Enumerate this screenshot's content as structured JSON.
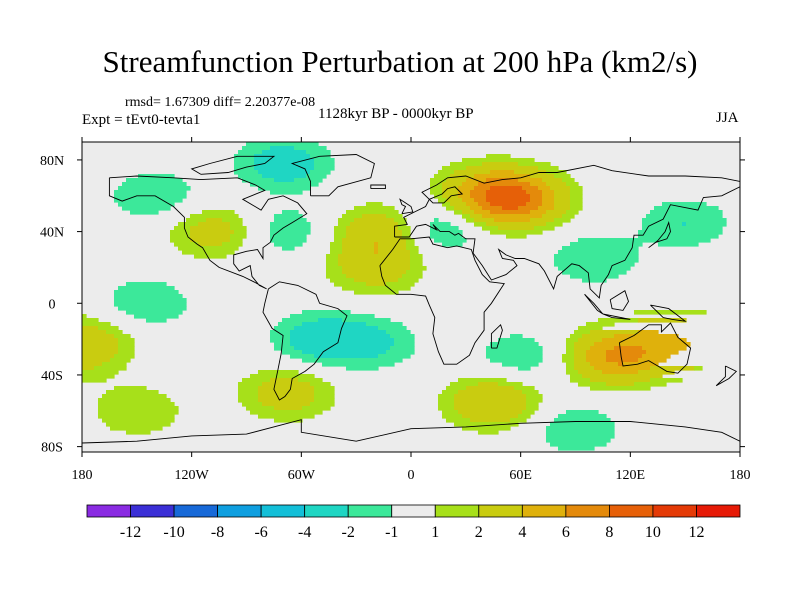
{
  "chart_data": {
    "type": "heatmap",
    "title": "Streamfunction Perturbation at 200 hPa (km2/s)",
    "stats_text": "rmsd= 1.67309 diff= 2.20377e-08",
    "experiment": "Expt = tEvt0-tevta1",
    "period": "1128kyr BP - 0000kyr BP",
    "season": "JJA",
    "projection": "cylindrical equidistant",
    "lon_range": [
      -180,
      180
    ],
    "lat_range": [
      -90,
      90
    ],
    "x_ticks": [
      {
        "value": -180,
        "label": "180"
      },
      {
        "value": -120,
        "label": "120W"
      },
      {
        "value": -60,
        "label": "60W"
      },
      {
        "value": 0,
        "label": "0"
      },
      {
        "value": 60,
        "label": "60E"
      },
      {
        "value": 120,
        "label": "120E"
      },
      {
        "value": 180,
        "label": "180"
      }
    ],
    "y_ticks": [
      {
        "value": 80,
        "label": "80N"
      },
      {
        "value": 40,
        "label": "40N"
      },
      {
        "value": 0,
        "label": "0"
      },
      {
        "value": -40,
        "label": "40S"
      },
      {
        "value": -80,
        "label": "80S"
      }
    ],
    "colorbar": {
      "labels": [
        "-12",
        "-10",
        "-8",
        "-6",
        "-4",
        "-2",
        "-1",
        "1",
        "2",
        "4",
        "6",
        "8",
        "10",
        "12"
      ],
      "colors": [
        "#8a2be2",
        "#3b2fd6",
        "#1769d8",
        "#0f9fe0",
        "#13bfd8",
        "#1fd6c3",
        "#3ce89a",
        "#ececec",
        "#a7e01a",
        "#c9cc10",
        "#dfb10c",
        "#e48a0b",
        "#e66008",
        "#e43a06",
        "#e61a06"
      ]
    },
    "field_centers": [
      {
        "lon": 58,
        "lat": 58,
        "value": 7
      },
      {
        "lon": 40,
        "lat": 62,
        "value": 4
      },
      {
        "lon": -15,
        "lat": 40,
        "value": 4
      },
      {
        "lon": -20,
        "lat": 20,
        "value": 3
      },
      {
        "lon": -107,
        "lat": 40,
        "value": 3
      },
      {
        "lon": 112,
        "lat": -30,
        "value": 6
      },
      {
        "lon": 140,
        "lat": -20,
        "value": 3
      },
      {
        "lon": 45,
        "lat": -55,
        "value": 4
      },
      {
        "lon": -68,
        "lat": -50,
        "value": 3
      },
      {
        "lon": -150,
        "lat": -60,
        "value": 2
      },
      {
        "lon": -175,
        "lat": -20,
        "value": 2
      },
      {
        "lon": 175,
        "lat": -28,
        "value": 2
      },
      {
        "lon": -70,
        "lat": 78,
        "value": -3
      },
      {
        "lon": -140,
        "lat": 60,
        "value": -2
      },
      {
        "lon": -70,
        "lat": 40,
        "value": -2
      },
      {
        "lon": 12,
        "lat": 42,
        "value": -3
      },
      {
        "lon": -50,
        "lat": -20,
        "value": -3
      },
      {
        "lon": -20,
        "lat": -22,
        "value": -2
      },
      {
        "lon": 150,
        "lat": 45,
        "value": -2
      },
      {
        "lon": 100,
        "lat": 25,
        "value": -2
      },
      {
        "lon": 60,
        "lat": -30,
        "value": -2
      },
      {
        "lon": -145,
        "lat": 0,
        "value": -2
      },
      {
        "lon": 90,
        "lat": -70,
        "value": -2
      }
    ]
  },
  "coastline_label": "continental outlines"
}
